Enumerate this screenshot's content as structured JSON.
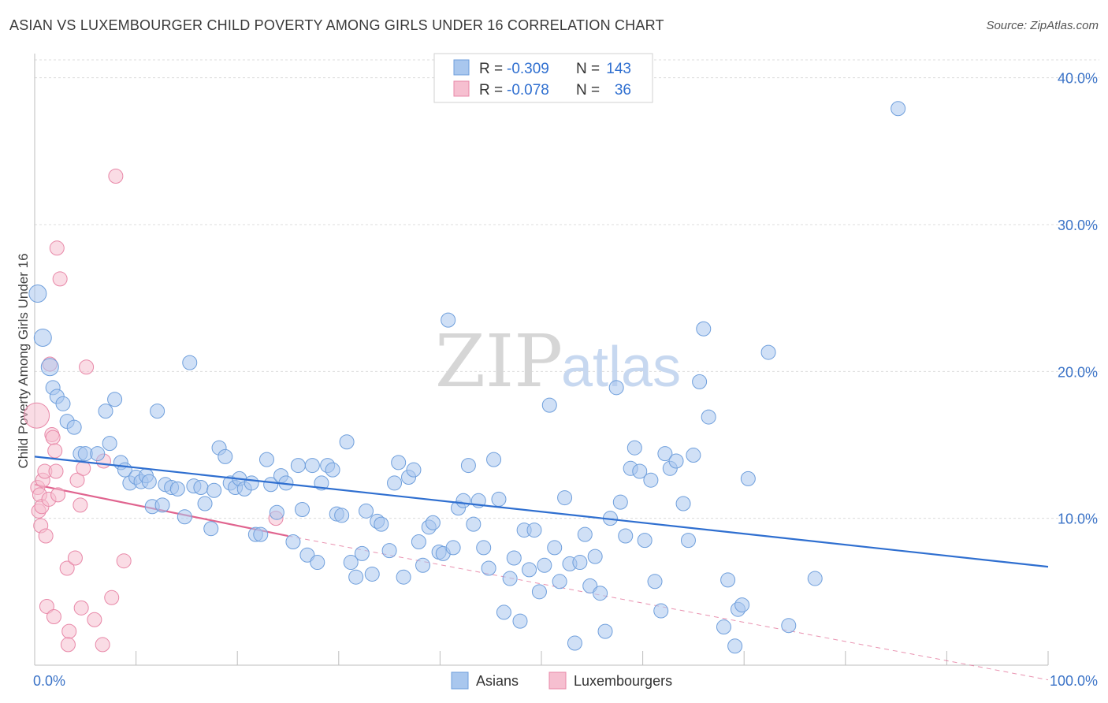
{
  "title": "ASIAN VS LUXEMBOURGER CHILD POVERTY AMONG GIRLS UNDER 16 CORRELATION CHART",
  "source": "Source: ZipAtlas.com",
  "watermark": {
    "zip": "ZIP",
    "atlas": "atlas"
  },
  "colors": {
    "asian_fill": "#a9c7ee",
    "asian_stroke": "#6f9fdc",
    "asian_line": "#2f6fd0",
    "lux_fill": "#f6bfd0",
    "lux_stroke": "#e888a8",
    "lux_line": "#e0648f",
    "grid": "#dcdcdc",
    "tick_text": "#3b73c7"
  },
  "legend": {
    "rows": [
      {
        "r_label": "R = ",
        "r_value": "-0.309",
        "n_label": "N = ",
        "n_value": "143"
      },
      {
        "r_label": "R = ",
        "r_value": "-0.078",
        "n_label": "N = ",
        "n_value": "36"
      }
    ]
  },
  "bottom_legend": [
    "Asians",
    "Luxembourgers"
  ],
  "chart_data": {
    "type": "scatter",
    "title": "ASIAN VS LUXEMBOURGER CHILD POVERTY AMONG GIRLS UNDER 16 CORRELATION CHART",
    "ylabel": "Child Poverty Among Girls Under 16",
    "xlabel": "",
    "xlim": [
      0,
      100
    ],
    "ylim": [
      0,
      41
    ],
    "x_tick_labels": [
      "0.0%",
      "100.0%"
    ],
    "y_ticks": [
      10,
      20,
      30,
      40
    ],
    "y_tick_labels": [
      "10.0%",
      "20.0%",
      "30.0%",
      "40.0%"
    ],
    "grid": true,
    "series": [
      {
        "name": "Asians",
        "r": -0.309,
        "n": 143,
        "trend": {
          "x": [
            0,
            100
          ],
          "y": [
            14.2,
            6.7
          ]
        },
        "points": [
          [
            0.3,
            25.3,
            11
          ],
          [
            0.8,
            22.3,
            11
          ],
          [
            1.5,
            20.3,
            11
          ],
          [
            1.8,
            18.9,
            9
          ],
          [
            2.2,
            18.3,
            9
          ],
          [
            2.8,
            17.8,
            9
          ],
          [
            3.2,
            16.6,
            9
          ],
          [
            3.9,
            16.2,
            9
          ],
          [
            4.5,
            14.4,
            9
          ],
          [
            5.0,
            14.4,
            9
          ],
          [
            6.2,
            14.4,
            9
          ],
          [
            7.0,
            17.3,
            9
          ],
          [
            7.4,
            15.1,
            9
          ],
          [
            7.9,
            18.1,
            9
          ],
          [
            8.5,
            13.8,
            9
          ],
          [
            8.9,
            13.3,
            9
          ],
          [
            9.4,
            12.4,
            9
          ],
          [
            10.0,
            12.8,
            9
          ],
          [
            10.5,
            12.5,
            9
          ],
          [
            11.0,
            12.9,
            9
          ],
          [
            11.3,
            12.5,
            9
          ],
          [
            11.6,
            10.8,
            9
          ],
          [
            12.1,
            17.3,
            9
          ],
          [
            12.6,
            10.9,
            9
          ],
          [
            12.9,
            12.3,
            9
          ],
          [
            13.5,
            12.1,
            9
          ],
          [
            14.1,
            12.0,
            9
          ],
          [
            14.8,
            10.1,
            9
          ],
          [
            15.3,
            20.6,
            9
          ],
          [
            15.7,
            12.2,
            9
          ],
          [
            16.4,
            12.1,
            9
          ],
          [
            16.8,
            11.0,
            9
          ],
          [
            17.4,
            9.3,
            9
          ],
          [
            17.7,
            11.9,
            9
          ],
          [
            18.2,
            14.8,
            9
          ],
          [
            18.8,
            14.2,
            9
          ],
          [
            19.3,
            12.4,
            9
          ],
          [
            19.8,
            12.1,
            9
          ],
          [
            20.2,
            12.7,
            9
          ],
          [
            20.7,
            12.0,
            9
          ],
          [
            21.4,
            12.4,
            9
          ],
          [
            21.8,
            8.9,
            9
          ],
          [
            22.3,
            8.9,
            9
          ],
          [
            22.9,
            14.0,
            9
          ],
          [
            23.3,
            12.3,
            9
          ],
          [
            23.9,
            10.4,
            9
          ],
          [
            24.3,
            12.9,
            9
          ],
          [
            24.8,
            12.4,
            9
          ],
          [
            25.5,
            8.4,
            9
          ],
          [
            26.0,
            13.6,
            9
          ],
          [
            26.4,
            10.6,
            9
          ],
          [
            26.9,
            7.5,
            9
          ],
          [
            27.4,
            13.6,
            9
          ],
          [
            27.9,
            7.0,
            9
          ],
          [
            28.3,
            12.4,
            9
          ],
          [
            28.9,
            13.6,
            9
          ],
          [
            29.4,
            13.3,
            9
          ],
          [
            29.8,
            10.3,
            9
          ],
          [
            30.3,
            10.2,
            9
          ],
          [
            30.8,
            15.2,
            9
          ],
          [
            31.2,
            7.0,
            9
          ],
          [
            31.7,
            6.0,
            9
          ],
          [
            32.3,
            7.6,
            9
          ],
          [
            32.7,
            10.5,
            9
          ],
          [
            33.3,
            6.2,
            9
          ],
          [
            33.8,
            9.8,
            9
          ],
          [
            34.2,
            9.6,
            9
          ],
          [
            35.0,
            7.8,
            9
          ],
          [
            35.5,
            12.4,
            9
          ],
          [
            35.9,
            13.8,
            9
          ],
          [
            36.4,
            6.0,
            9
          ],
          [
            36.9,
            12.8,
            9
          ],
          [
            37.4,
            13.3,
            9
          ],
          [
            37.9,
            8.4,
            9
          ],
          [
            38.3,
            6.8,
            9
          ],
          [
            38.9,
            9.4,
            9
          ],
          [
            39.3,
            9.7,
            9
          ],
          [
            39.9,
            7.7,
            9
          ],
          [
            40.3,
            7.6,
            9
          ],
          [
            40.8,
            23.5,
            9
          ],
          [
            41.3,
            8.0,
            9
          ],
          [
            41.8,
            10.7,
            9
          ],
          [
            42.3,
            11.2,
            9
          ],
          [
            42.8,
            13.6,
            9
          ],
          [
            43.3,
            9.6,
            9
          ],
          [
            43.8,
            11.2,
            9
          ],
          [
            44.3,
            8.0,
            9
          ],
          [
            44.8,
            6.6,
            9
          ],
          [
            45.3,
            14.0,
            9
          ],
          [
            45.8,
            11.3,
            9
          ],
          [
            46.3,
            3.6,
            9
          ],
          [
            46.9,
            5.9,
            9
          ],
          [
            47.3,
            7.3,
            9
          ],
          [
            47.9,
            3.0,
            9
          ],
          [
            48.3,
            9.2,
            9
          ],
          [
            48.8,
            6.5,
            9
          ],
          [
            49.3,
            9.2,
            9
          ],
          [
            49.8,
            5.0,
            9
          ],
          [
            50.3,
            6.8,
            9
          ],
          [
            50.8,
            17.7,
            9
          ],
          [
            51.3,
            8.0,
            9
          ],
          [
            51.8,
            5.7,
            9
          ],
          [
            52.3,
            11.4,
            9
          ],
          [
            52.8,
            6.9,
            9
          ],
          [
            53.3,
            1.5,
            9
          ],
          [
            53.8,
            7.0,
            9
          ],
          [
            54.3,
            8.9,
            9
          ],
          [
            54.8,
            5.4,
            9
          ],
          [
            55.3,
            7.4,
            9
          ],
          [
            55.8,
            4.9,
            9
          ],
          [
            56.3,
            2.3,
            9
          ],
          [
            56.8,
            10.0,
            9
          ],
          [
            57.4,
            18.9,
            9
          ],
          [
            57.8,
            11.1,
            9
          ],
          [
            58.3,
            8.8,
            9
          ],
          [
            58.8,
            13.4,
            9
          ],
          [
            59.2,
            14.8,
            9
          ],
          [
            59.7,
            13.2,
            9
          ],
          [
            60.2,
            8.5,
            9
          ],
          [
            60.8,
            12.6,
            9
          ],
          [
            61.2,
            5.7,
            9
          ],
          [
            61.8,
            3.7,
            9
          ],
          [
            62.2,
            14.4,
            9
          ],
          [
            62.7,
            13.4,
            9
          ],
          [
            63.3,
            13.9,
            9
          ],
          [
            64.0,
            11.0,
            9
          ],
          [
            64.5,
            8.5,
            9
          ],
          [
            65.0,
            14.3,
            9
          ],
          [
            65.6,
            19.3,
            9
          ],
          [
            66.0,
            22.9,
            9
          ],
          [
            66.5,
            16.9,
            9
          ],
          [
            68.0,
            2.6,
            9
          ],
          [
            68.4,
            5.8,
            9
          ],
          [
            69.1,
            1.3,
            9
          ],
          [
            69.4,
            3.8,
            9
          ],
          [
            69.8,
            4.1,
            9
          ],
          [
            70.4,
            12.7,
            9
          ],
          [
            72.4,
            21.3,
            9
          ],
          [
            74.4,
            2.7,
            9
          ],
          [
            77.0,
            5.9,
            9
          ],
          [
            85.2,
            37.9,
            9
          ]
        ]
      },
      {
        "name": "Luxembourgers",
        "r": -0.078,
        "n": 36,
        "trend": {
          "x": [
            0,
            25
          ],
          "y": [
            12.3,
            8.8
          ],
          "dashed_to": [
            100,
            -1.0
          ]
        },
        "points": [
          [
            0.2,
            17.0,
            16
          ],
          [
            0.3,
            12.1,
            9
          ],
          [
            0.4,
            10.5,
            9
          ],
          [
            0.5,
            11.6,
            9
          ],
          [
            0.6,
            9.5,
            9
          ],
          [
            0.7,
            10.8,
            9
          ],
          [
            0.8,
            12.6,
            9
          ],
          [
            1.0,
            13.2,
            9
          ],
          [
            1.1,
            8.8,
            9
          ],
          [
            1.2,
            4.0,
            9
          ],
          [
            1.4,
            11.3,
            9
          ],
          [
            1.5,
            20.5,
            9
          ],
          [
            1.7,
            15.7,
            9
          ],
          [
            1.8,
            15.5,
            9
          ],
          [
            1.9,
            3.3,
            9
          ],
          [
            2.0,
            14.6,
            9
          ],
          [
            2.1,
            13.2,
            9
          ],
          [
            2.2,
            28.4,
            9
          ],
          [
            2.3,
            11.6,
            9
          ],
          [
            2.5,
            26.3,
            9
          ],
          [
            3.2,
            6.6,
            9
          ],
          [
            3.4,
            2.3,
            9
          ],
          [
            3.3,
            1.4,
            9
          ],
          [
            4.0,
            7.3,
            9
          ],
          [
            4.2,
            12.6,
            9
          ],
          [
            4.5,
            10.9,
            9
          ],
          [
            4.6,
            3.9,
            9
          ],
          [
            4.8,
            13.4,
            9
          ],
          [
            5.1,
            20.3,
            9
          ],
          [
            5.9,
            3.1,
            9
          ],
          [
            6.7,
            1.4,
            9
          ],
          [
            6.8,
            13.9,
            9
          ],
          [
            7.6,
            4.6,
            9
          ],
          [
            8.0,
            33.3,
            9
          ],
          [
            8.8,
            7.1,
            9
          ],
          [
            23.8,
            10.0,
            9
          ]
        ]
      }
    ]
  }
}
